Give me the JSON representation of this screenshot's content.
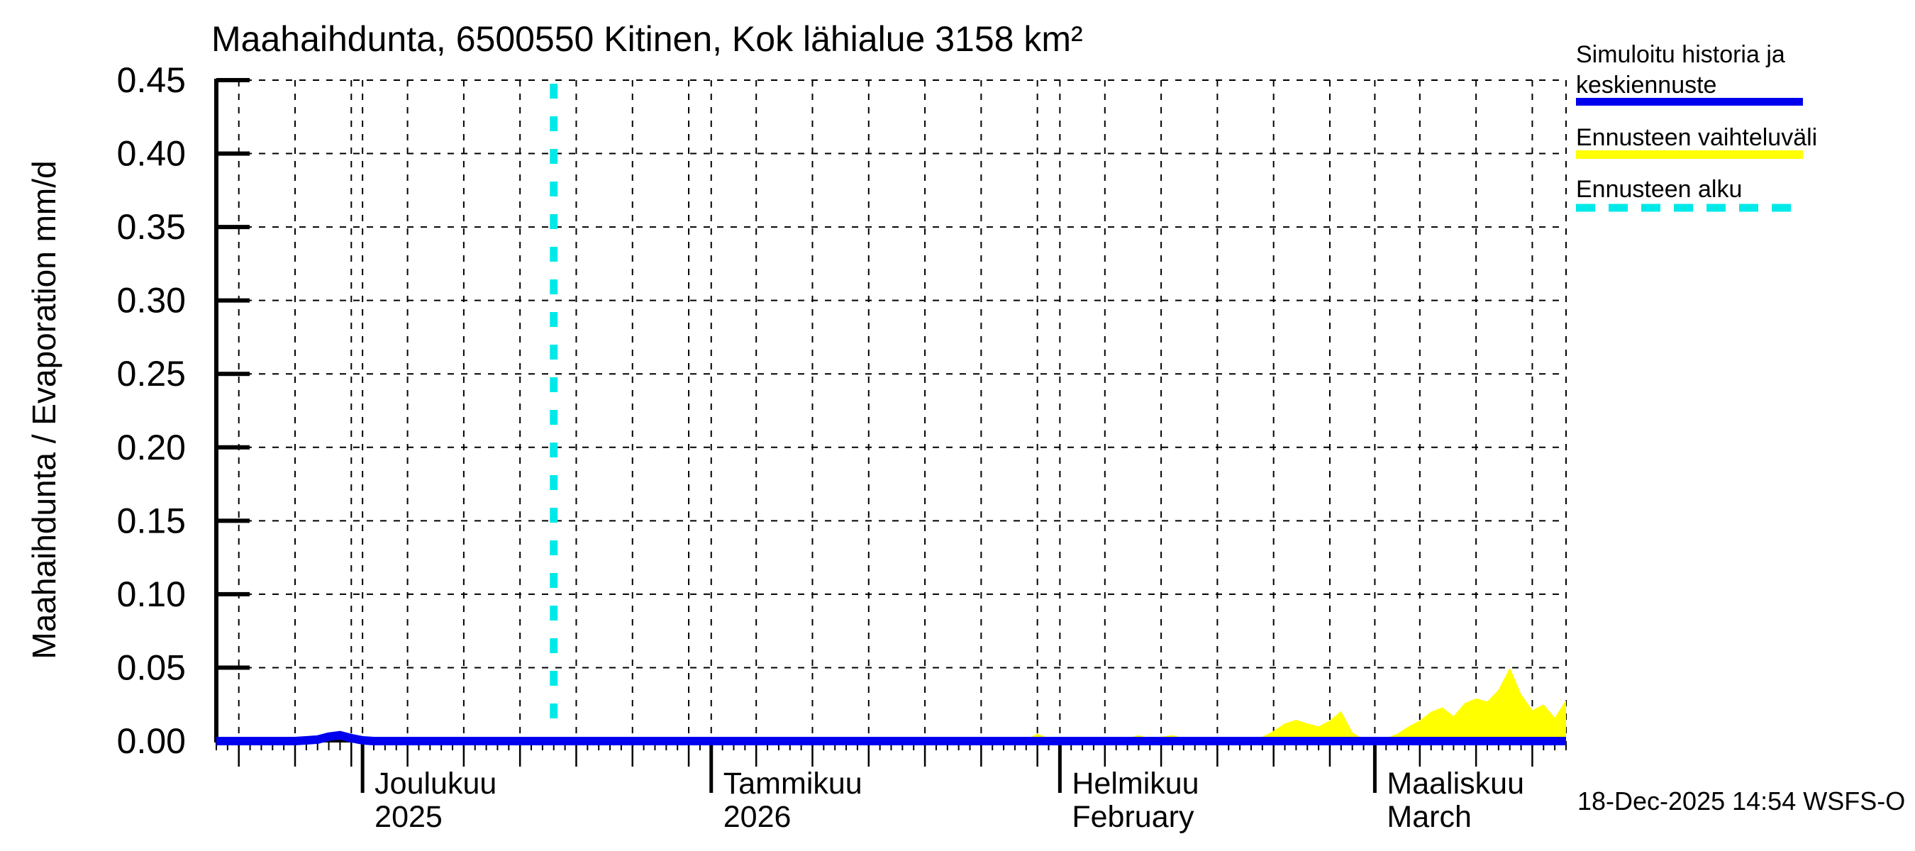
{
  "title": "Maahaihdunta, 6500550 Kitinen, Kok lähialue 3158 km²",
  "footer": {
    "timestamp": "18-Dec-2025 14:54 WSFS-O"
  },
  "colors": {
    "history_mean": "#0000EE",
    "forecast_range": "#FFFF00",
    "forecast_start": "#00E9E9",
    "grid": "#000000",
    "axis": "#000000",
    "text": "#000000",
    "background": "#FFFFFF"
  },
  "legend": {
    "items": [
      {
        "label_line1": "Simuloitu historia ja",
        "label_line2": "keskiennuste",
        "swatch": "blue-solid-line"
      },
      {
        "label_line1": "Ennusteen vaihteluväli",
        "label_line2": "",
        "swatch": "yellow-solid-line"
      },
      {
        "label_line1": "Ennusteen alku",
        "label_line2": "",
        "swatch": "cyan-dashed-line"
      }
    ]
  },
  "y_axis": {
    "label": "Maahaihdunta / Evaporation  mm/d",
    "tick_labels": [
      "0.00",
      "0.05",
      "0.10",
      "0.15",
      "0.20",
      "0.25",
      "0.30",
      "0.35",
      "0.40",
      "0.45"
    ],
    "tick_values": [
      0,
      0.05,
      0.1,
      0.15,
      0.2,
      0.25,
      0.3,
      0.35,
      0.4,
      0.45
    ],
    "min": 0,
    "max": 0.45
  },
  "x_axis": {
    "start_date": "2025-11-18",
    "end_date": "2026-03-18",
    "total_days": 120,
    "gridline_days_of_month": [
      1,
      5,
      10,
      15,
      20,
      25,
      30
    ],
    "months": [
      {
        "label": "",
        "label2": "",
        "start_day": -17,
        "days": 30
      },
      {
        "label": "Joulukuu",
        "label2": "2025",
        "start_day": 13,
        "days": 31
      },
      {
        "label": "Tammikuu",
        "label2": "2026",
        "start_day": 44,
        "days": 31
      },
      {
        "label": "Helmikuu",
        "label2": "February",
        "start_day": 75,
        "days": 28
      },
      {
        "label": "Maaliskuu",
        "label2": "March",
        "start_day": 103,
        "days": 31
      }
    ]
  },
  "chart_data": {
    "type": "area",
    "title": "Maahaihdunta, 6500550 Kitinen, Kok lähialue 3158 km²",
    "unit": "mm/d",
    "xlabel": "",
    "ylabel": "Maahaihdunta / Evaporation  mm/d",
    "ylim": [
      0,
      0.45
    ],
    "x_start": "2025-11-18",
    "x_end": "2026-03-18",
    "total_days": 120,
    "forecast_start_day": 30,
    "forecast_start_date": "2025-12-18",
    "grid": "dashed-black, horizontal every 0.05, vertical on days 1/5/10/15/20/25/30 of each month",
    "legend_position": "outside-top-right",
    "series": [
      {
        "name": "Simuloitu historia ja keskiennuste",
        "type": "line",
        "color": "#0000EE",
        "baseline": 0,
        "note": "value is 0 mm/d everywhere except small bump late November",
        "nonzero_points_day_value": [
          [
            8,
            0.0005
          ],
          [
            9,
            0.001
          ],
          [
            10,
            0.003
          ],
          [
            11,
            0.004
          ],
          [
            12,
            0.002
          ],
          [
            13,
            0.0005
          ]
        ]
      },
      {
        "name": "Ennusteen vaihteluväli",
        "type": "area",
        "color": "#FFFF00",
        "baseline": 0,
        "note": "upper bound of forecast range, starts at forecast_start_day; 0 where not listed",
        "nonzero_points_day_value": [
          [
            72,
            0.001
          ],
          [
            73,
            0.005
          ],
          [
            74,
            0.002
          ],
          [
            77,
            0.001
          ],
          [
            78,
            0.001
          ],
          [
            80,
            0.001
          ],
          [
            81,
            0.002
          ],
          [
            82,
            0.004
          ],
          [
            83,
            0.002
          ],
          [
            84,
            0.003
          ],
          [
            85,
            0.004
          ],
          [
            86,
            0.002
          ],
          [
            87,
            0.001
          ],
          [
            92,
            0.001
          ],
          [
            93,
            0.003
          ],
          [
            94,
            0.007
          ],
          [
            95,
            0.012
          ],
          [
            96,
            0.0145
          ],
          [
            97,
            0.012
          ],
          [
            98,
            0.01
          ],
          [
            99,
            0.014
          ],
          [
            100,
            0.0205
          ],
          [
            101,
            0.006
          ],
          [
            102,
            0.001
          ],
          [
            103,
            0.0015
          ],
          [
            104,
            0.002
          ],
          [
            105,
            0.005
          ],
          [
            106,
            0.01
          ],
          [
            107,
            0.014
          ],
          [
            108,
            0.02
          ],
          [
            109,
            0.023
          ],
          [
            110,
            0.017
          ],
          [
            111,
            0.026
          ],
          [
            112,
            0.029
          ],
          [
            113,
            0.027
          ],
          [
            114,
            0.035
          ],
          [
            115,
            0.05
          ],
          [
            116,
            0.032
          ],
          [
            117,
            0.021
          ],
          [
            118,
            0.025
          ],
          [
            119,
            0.016
          ],
          [
            120,
            0.028
          ]
        ]
      }
    ],
    "annotations": [
      {
        "name": "Ennusteen alku",
        "type": "vline",
        "day": 30,
        "date": "2025-12-18",
        "color": "#00E9E9",
        "style": "dashed"
      }
    ]
  }
}
